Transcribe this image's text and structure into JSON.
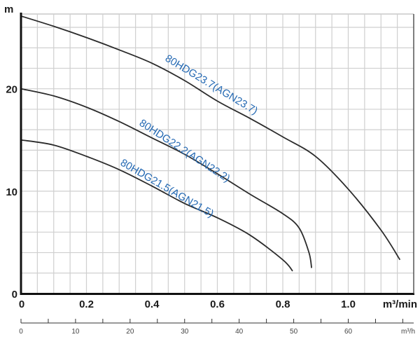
{
  "chart_data": {
    "type": "line",
    "title": "",
    "xlabel": "m³/min",
    "ylabel": "m",
    "xlim": [
      0,
      1.2
    ],
    "ylim": [
      0,
      27.3
    ],
    "x_ticks": [
      {
        "value": 0,
        "label": "0"
      },
      {
        "value": 0.2,
        "label": "0.2"
      },
      {
        "value": 0.4,
        "label": "0.4"
      },
      {
        "value": 0.6,
        "label": "0.6"
      },
      {
        "value": 0.8,
        "label": "0.8"
      },
      {
        "value": 1.0,
        "label": "1.0"
      }
    ],
    "y_ticks": [
      {
        "value": 0,
        "label": "0"
      },
      {
        "value": 10,
        "label": "10"
      },
      {
        "value": 20,
        "label": "20"
      }
    ],
    "grid": true,
    "grid_x_step": 0.05,
    "grid_y_step": 2,
    "secondary_x_axis": {
      "label": "m³/h",
      "lim": [
        0,
        72
      ],
      "tick_step": 5,
      "ticks": [
        {
          "value": 0,
          "label": "0"
        },
        {
          "value": 10,
          "label": "10"
        },
        {
          "value": 20,
          "label": "20"
        },
        {
          "value": 30,
          "label": "30"
        },
        {
          "value": 40,
          "label": "40"
        },
        {
          "value": 50,
          "label": "50"
        },
        {
          "value": 60,
          "label": "60"
        }
      ]
    },
    "series": [
      {
        "name": "80HDG23.7(AGN23.7)",
        "color": "#2b2b2b",
        "x": [
          0,
          0.1,
          0.2,
          0.3,
          0.4,
          0.5,
          0.6,
          0.7,
          0.8,
          0.9,
          1.0,
          1.1,
          1.158
        ],
        "y": [
          27.1,
          26.1,
          25.0,
          23.8,
          22.5,
          20.8,
          18.8,
          17.1,
          15.3,
          13.4,
          10.2,
          6.2,
          3.3
        ]
      },
      {
        "name": "80HDG22.2(AGN22.2)",
        "color": "#2b2b2b",
        "x": [
          0,
          0.1,
          0.2,
          0.3,
          0.4,
          0.5,
          0.6,
          0.7,
          0.8,
          0.85,
          0.88,
          0.888
        ],
        "y": [
          20.0,
          19.3,
          18.2,
          16.8,
          15.2,
          13.6,
          11.7,
          9.7,
          7.8,
          6.4,
          4.0,
          2.5
        ]
      },
      {
        "name": "80HDG21.5(AGN21.5)",
        "color": "#2b2b2b",
        "x": [
          0,
          0.1,
          0.2,
          0.3,
          0.4,
          0.5,
          0.6,
          0.7,
          0.8,
          0.83
        ],
        "y": [
          15.0,
          14.5,
          13.4,
          12.1,
          10.5,
          8.8,
          7.4,
          5.7,
          3.3,
          2.2
        ]
      }
    ],
    "label_color": "#2469b3"
  }
}
